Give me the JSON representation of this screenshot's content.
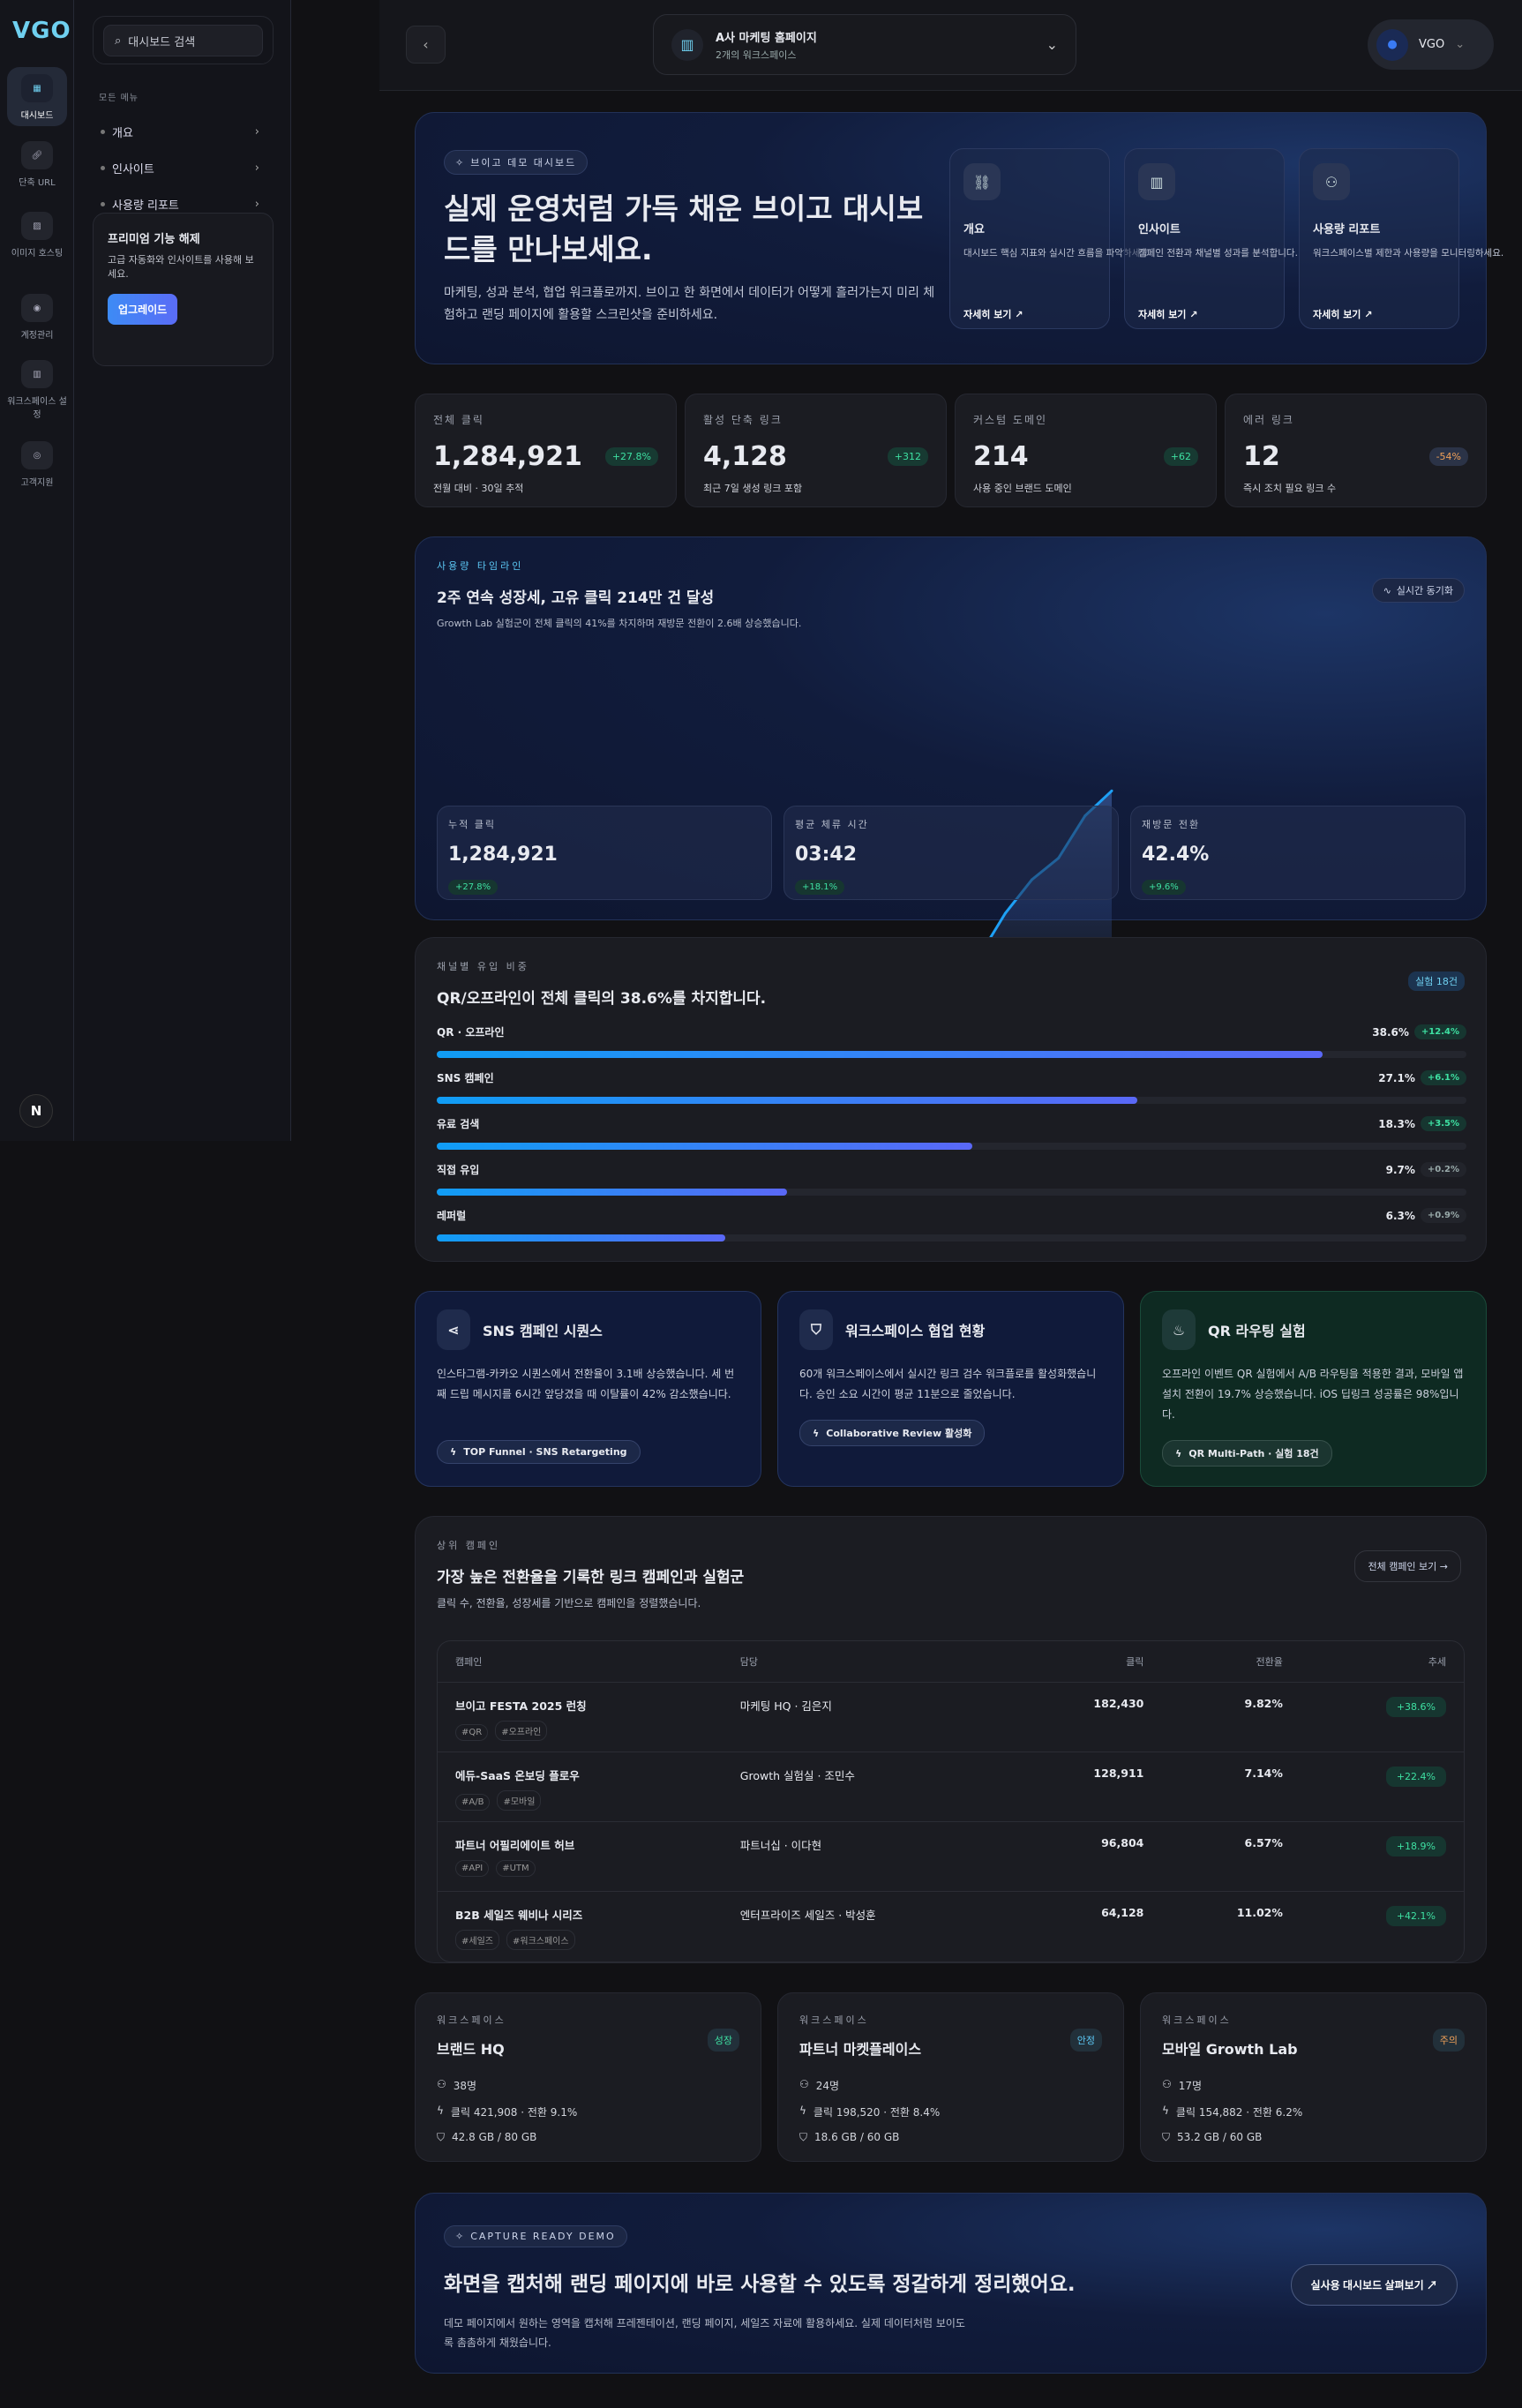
{
  "rail": {
    "logo": "VGO",
    "items": [
      {
        "label": "대시보드"
      },
      {
        "label": "단축 URL"
      },
      {
        "label": "이미지 호스팅"
      },
      {
        "label": "계정관리"
      },
      {
        "label": "워크스페이스 설정"
      },
      {
        "label": "고객지원"
      }
    ],
    "bottom_badge": "N"
  },
  "sidebar": {
    "search_placeholder": "대시보드 검색",
    "section": "모든 메뉴",
    "items": [
      "개요",
      "인사이트",
      "사용량 리포트"
    ],
    "promo": {
      "title": "프리미엄 기능 해제",
      "desc": "고급 자동화와 인사이트를 사용해 보세요.",
      "button": "업그레이드"
    }
  },
  "topbar": {
    "workspace_name": "A사 마케팅 홈페이지",
    "workspace_sub": "2개의 워크스페이스",
    "user": "VGO"
  },
  "hero": {
    "pill": "브이고 데모 대시보드",
    "title": "실제 운영처럼 가득 채운 브이고 대시보드를 만나보세요.",
    "desc": "마케팅, 성과 분석, 협업 워크플로까지. 브이고 한 화면에서 데이터가 어떻게 흘러가는지 미리 체험하고 랜딩 페이지에 활용할 스크린샷을 준비하세요.",
    "cards": [
      {
        "title": "개요",
        "desc": "대시보드 핵심 지표와 실시간 흐름을 파악하세요.",
        "link": "자세히 보기 ↗"
      },
      {
        "title": "인사이트",
        "desc": "캠페인 전환과 채널별 성과를 분석합니다.",
        "link": "자세히 보기 ↗"
      },
      {
        "title": "사용량 리포트",
        "desc": "워크스페이스별 제한과 사용량을 모니터링하세요.",
        "link": "자세히 보기 ↗"
      }
    ]
  },
  "kpis": [
    {
      "label": "전체 클릭",
      "value": "1,284,921",
      "delta": "+27.8%",
      "sub": "전월 대비 · 30일 추적"
    },
    {
      "label": "활성 단축 링크",
      "value": "4,128",
      "delta": "+312",
      "sub": "최근 7일 생성 링크 포함"
    },
    {
      "label": "커스텀 도메인",
      "value": "214",
      "delta": "+62",
      "sub": "사용 중인 브랜드 도메인"
    },
    {
      "label": "에러 링크",
      "value": "12",
      "delta": "-54%",
      "sub": "즉시 조치 필요 링크 수"
    }
  ],
  "timeline": {
    "eyebrow": "사용량 타임라인",
    "title": "2주 연속 성장세, 고유 클릭 214만 건 달성",
    "desc": "Growth Lab 실험군이 전체 클릭의 41%를 차지하며 재방문 전환이 2.6배 상승했습니다.",
    "sync": "실시간 동기화",
    "metrics": [
      {
        "label": "누적 클릭",
        "value": "1,284,921",
        "delta": "+27.8%"
      },
      {
        "label": "평균 체류 시간",
        "value": "03:42",
        "delta": "+18.1%"
      },
      {
        "label": "재방문 전환",
        "value": "42.4%",
        "delta": "+9.6%"
      }
    ]
  },
  "chart_data": {
    "type": "area",
    "title": "사용량 타임라인",
    "x": [
      1,
      2,
      3,
      4,
      5,
      6,
      7,
      8,
      9,
      10,
      11,
      12,
      13
    ],
    "values": [
      0,
      20,
      70,
      83,
      115,
      155,
      205,
      230,
      295,
      345,
      377,
      440,
      477
    ],
    "ylim": [
      0,
      480
    ],
    "grid": false,
    "line_color": "#1ea0f5"
  },
  "channels": {
    "eyebrow": "채널별 유입 비중",
    "title": "QR/오프라인이 전체 클릭의 38.6%를 차지합니다.",
    "badge": "실험 18건",
    "items": [
      {
        "name": "QR · 오프라인",
        "pct": "38.6%",
        "delta": "+12.4%",
        "fill": 0.86,
        "up": true
      },
      {
        "name": "SNS 캠페인",
        "pct": "27.1%",
        "delta": "+6.1%",
        "fill": 0.68,
        "up": true
      },
      {
        "name": "유료 검색",
        "pct": "18.3%",
        "delta": "+3.5%",
        "fill": 0.52,
        "up": true
      },
      {
        "name": "직접 유입",
        "pct": "9.7%",
        "delta": "+0.2%",
        "fill": 0.34,
        "up": false
      },
      {
        "name": "레퍼럴",
        "pct": "6.3%",
        "delta": "+0.9%",
        "fill": 0.28,
        "up": false
      }
    ]
  },
  "features": [
    {
      "title": "SNS 캠페인 시퀀스",
      "desc": "인스타그램-카카오 시퀀스에서 전환율이 3.1배 상승했습니다. 세 번째 드립 메시지를 6시간 앞당겼을 때 이탈률이 42% 감소했습니다.",
      "tag": "TOP Funnel · SNS Retargeting"
    },
    {
      "title": "워크스페이스 협업 현황",
      "desc": "60개 워크스페이스에서 실시간 링크 검수 워크플로를 활성화했습니다. 승인 소요 시간이 평균 11분으로 줄었습니다.",
      "tag": "Collaborative Review 활성화"
    },
    {
      "title": "QR 라우팅 실험",
      "desc": "오프라인 이벤트 QR 실험에서 A/B 라우팅을 적용한 결과, 모바일 앱 설치 전환이 19.7% 상승했습니다. iOS 딥링크 성공률은 98%입니다.",
      "tag": "QR Multi-Path · 실험 18건"
    }
  ],
  "campaigns": {
    "eyebrow": "상위 캠페인",
    "title": "가장 높은 전환율을 기록한 링크 캠페인과 실험군",
    "desc": "클릭 수, 전환율, 성장세를 기반으로 캠페인을 정렬했습니다.",
    "view_all": "전체 캠페인 보기 →",
    "headers": [
      "캠페인",
      "담당",
      "클릭",
      "전환율",
      "추세"
    ],
    "rows": [
      {
        "name": "브이고 FESTA 2025 런칭",
        "tags": [
          "#QR",
          "#오프라인"
        ],
        "owner": "마케팅 HQ · 김은지",
        "clicks": "182,430",
        "conv": "9.82%",
        "trend": "+38.6%"
      },
      {
        "name": "에듀-SaaS 온보딩 플로우",
        "tags": [
          "#A/B",
          "#모바일"
        ],
        "owner": "Growth 실험실 · 조민수",
        "clicks": "128,911",
        "conv": "7.14%",
        "trend": "+22.4%"
      },
      {
        "name": "파트너 어필리에이트 허브",
        "tags": [
          "#API",
          "#UTM"
        ],
        "owner": "파트너십 · 이다현",
        "clicks": "96,804",
        "conv": "6.57%",
        "trend": "+18.9%"
      },
      {
        "name": "B2B 세일즈 웨비나 시리즈",
        "tags": [
          "#세일즈",
          "#워크스페이스"
        ],
        "owner": "엔터프라이즈 세일즈 · 박성훈",
        "clicks": "64,128",
        "conv": "11.02%",
        "trend": "+42.1%"
      }
    ]
  },
  "workspaces": [
    {
      "eyebrow": "워크스페이스",
      "name": "브랜드 HQ",
      "status": "성장",
      "status_color": "#3ee0a2",
      "members": "38명",
      "stats": "클릭 421,908 · 전환 9.1%",
      "storage": "42.8 GB / 80 GB"
    },
    {
      "eyebrow": "워크스페이스",
      "name": "파트너 마켓플레이스",
      "status": "안정",
      "status_color": "#5cc8f5",
      "members": "24명",
      "stats": "클릭 198,520 · 전환 8.4%",
      "storage": "18.6 GB / 60 GB"
    },
    {
      "eyebrow": "워크스페이스",
      "name": "모바일 Growth Lab",
      "status": "주의",
      "status_color": "#f0a058",
      "members": "17명",
      "stats": "클릭 154,882 · 전환 6.2%",
      "storage": "53.2 GB / 60 GB"
    }
  ],
  "cta": {
    "pill": "CAPTURE READY DEMO",
    "title": "화면을 캡처해 랜딩 페이지에 바로 사용할 수 있도록 정갈하게 정리했어요.",
    "desc": "데모 페이지에서 원하는 영역을 캡처해 프레젠테이션, 랜딩 페이지, 세일즈 자료에 활용하세요. 실제 데이터처럼 보이도록 촘촘하게 채웠습니다.",
    "button": "실사용 대시보드 살펴보기 ↗"
  }
}
